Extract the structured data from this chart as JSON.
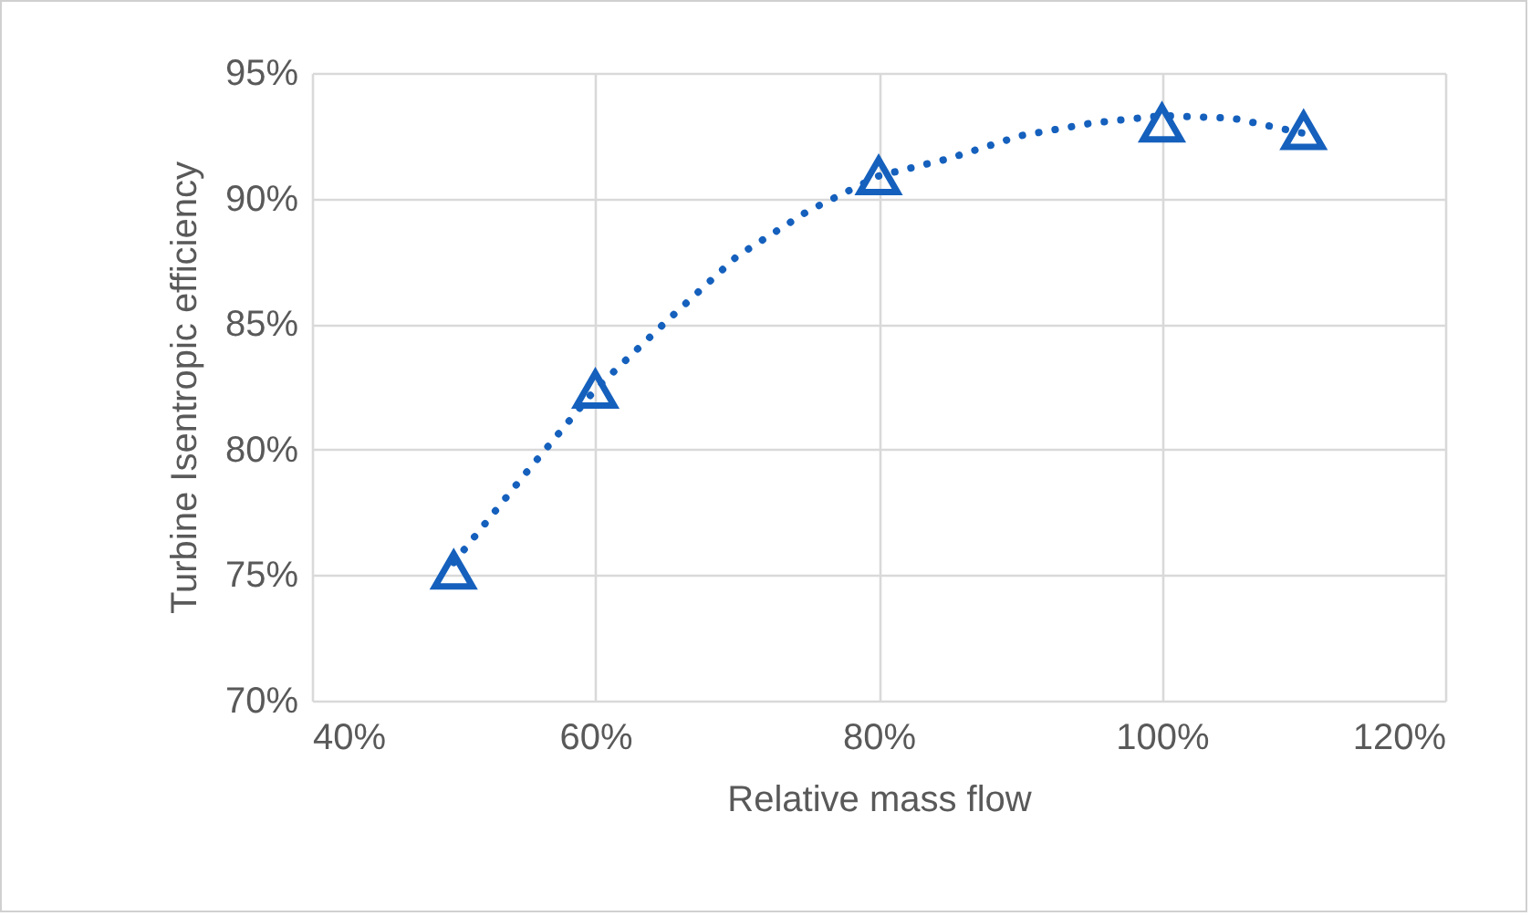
{
  "chart_data": {
    "type": "scatter",
    "xlabel": "Relative mass flow",
    "ylabel": "Turbine Isentropic efficiency",
    "xlim": [
      40,
      120
    ],
    "xticks": [
      {
        "value": 40,
        "label": "40%"
      },
      {
        "value": 60,
        "label": "60%"
      },
      {
        "value": 80,
        "label": "80%"
      },
      {
        "value": 100,
        "label": "100%"
      },
      {
        "value": 120,
        "label": "120%"
      }
    ],
    "ylim": [
      70,
      95
    ],
    "yticks": [
      {
        "value": 70,
        "label": "70%"
      },
      {
        "value": 75,
        "label": "75%"
      },
      {
        "value": 80,
        "label": "80%"
      },
      {
        "value": 85,
        "label": "85%"
      },
      {
        "value": 90,
        "label": "90%"
      },
      {
        "value": 95,
        "label": "95%"
      }
    ],
    "grid": true,
    "series": [
      {
        "type": "line",
        "line_style": "dotted",
        "marker": "none",
        "color": "#1560bd",
        "x": [
          50,
          55,
          60,
          65,
          70,
          75,
          80,
          85,
          90,
          95,
          100,
          105,
          110
        ],
        "values": [
          75.5,
          79.0,
          82.4,
          85.1,
          87.7,
          89.5,
          90.9,
          91.6,
          92.5,
          93.0,
          93.3,
          93.2,
          92.6
        ]
      },
      {
        "marker": "triangle",
        "color": "#1560bd",
        "x": [
          50,
          60,
          80,
          100,
          110
        ],
        "values": [
          75.2,
          82.4,
          90.9,
          93.0,
          92.7
        ]
      }
    ]
  }
}
